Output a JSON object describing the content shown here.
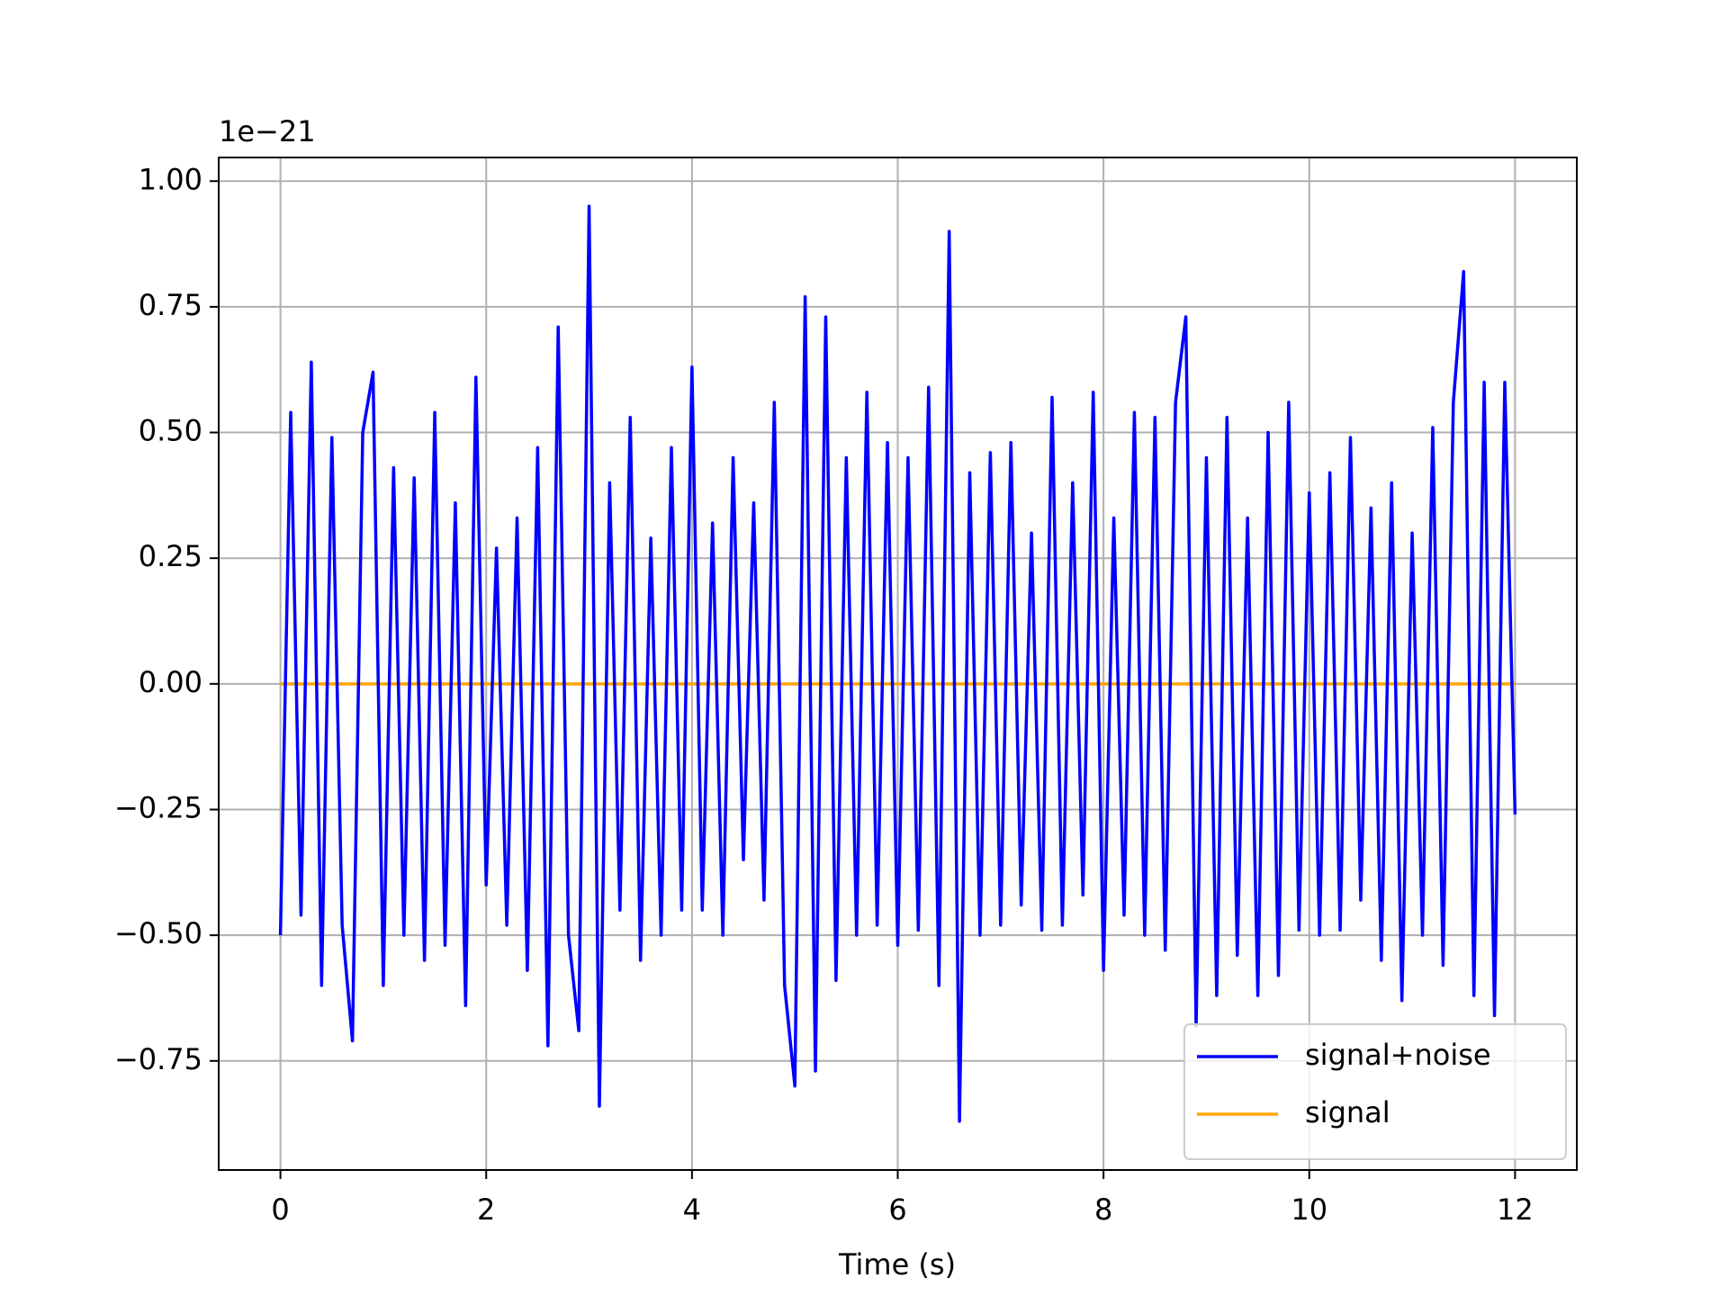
{
  "chart_data": {
    "type": "line",
    "xlabel": "Time (s)",
    "offset_text": "1e−21",
    "x": [
      0.0,
      0.1,
      0.2,
      0.3,
      0.4,
      0.5,
      0.6,
      0.7,
      0.8,
      0.9,
      1.0,
      1.1,
      1.2,
      1.3,
      1.4,
      1.5,
      1.6,
      1.7,
      1.8,
      1.9,
      2.0,
      2.1,
      2.2,
      2.3,
      2.4,
      2.5,
      2.6,
      2.7,
      2.8,
      2.9,
      3.0,
      3.1,
      3.2,
      3.3,
      3.4,
      3.5,
      3.6,
      3.7,
      3.8,
      3.9,
      4.0,
      4.1,
      4.2,
      4.3,
      4.4,
      4.5,
      4.6,
      4.7,
      4.8,
      4.9,
      5.0,
      5.1,
      5.2,
      5.3,
      5.4,
      5.5,
      5.6,
      5.7,
      5.8,
      5.9,
      6.0,
      6.1,
      6.2,
      6.3,
      6.4,
      6.5,
      6.6,
      6.7,
      6.8,
      6.9,
      7.0,
      7.1,
      7.2,
      7.3,
      7.4,
      7.5,
      7.6,
      7.7,
      7.8,
      7.9,
      8.0,
      8.1,
      8.2,
      8.3,
      8.4,
      8.5,
      8.6,
      8.7,
      8.8,
      8.9,
      9.0,
      9.1,
      9.2,
      9.3,
      9.4,
      9.5,
      9.6,
      9.7,
      9.8,
      9.9,
      10.0,
      10.1,
      10.2,
      10.3,
      10.4,
      10.5,
      10.6,
      10.7,
      10.8,
      10.9,
      11.0,
      11.1,
      11.2,
      11.3,
      11.4,
      11.5,
      11.6,
      11.7,
      11.8,
      11.9,
      12.0
    ],
    "series": [
      {
        "name": "signal+noise",
        "color": "#0000ff",
        "values": [
          -0.5,
          0.54,
          -0.46,
          0.64,
          -0.6,
          0.49,
          -0.48,
          -0.71,
          0.5,
          0.62,
          -0.6,
          0.43,
          -0.5,
          0.41,
          -0.55,
          0.54,
          -0.52,
          0.36,
          -0.64,
          0.61,
          -0.4,
          0.27,
          -0.48,
          0.33,
          -0.57,
          0.47,
          -0.72,
          0.71,
          -0.5,
          -0.69,
          0.95,
          -0.84,
          0.4,
          -0.45,
          0.53,
          -0.55,
          0.29,
          -0.5,
          0.47,
          -0.45,
          0.63,
          -0.45,
          0.32,
          -0.5,
          0.45,
          -0.35,
          0.36,
          -0.43,
          0.56,
          -0.6,
          -0.8,
          0.77,
          -0.77,
          0.73,
          -0.59,
          0.45,
          -0.5,
          0.58,
          -0.48,
          0.48,
          -0.52,
          0.45,
          -0.49,
          0.59,
          -0.6,
          0.9,
          -0.87,
          0.42,
          -0.5,
          0.46,
          -0.48,
          0.48,
          -0.44,
          0.3,
          -0.49,
          0.57,
          -0.48,
          0.4,
          -0.42,
          0.58,
          -0.57,
          0.33,
          -0.46,
          0.54,
          -0.5,
          0.53,
          -0.53,
          0.56,
          0.73,
          -0.68,
          0.45,
          -0.62,
          0.53,
          -0.54,
          0.33,
          -0.62,
          0.5,
          -0.58,
          0.56,
          -0.49,
          0.38,
          -0.5,
          0.42,
          -0.49,
          0.49,
          -0.43,
          0.35,
          -0.55,
          0.4,
          -0.63,
          0.3,
          -0.5,
          0.51,
          -0.56,
          0.56,
          0.82,
          -0.62,
          0.6,
          -0.66,
          0.6,
          -0.26
        ]
      },
      {
        "name": "signal",
        "color": "#ffa500",
        "values": [
          0,
          0,
          0,
          0,
          0,
          0,
          0,
          0,
          0,
          0,
          0,
          0,
          0,
          0,
          0,
          0,
          0,
          0,
          0,
          0,
          0,
          0,
          0,
          0,
          0,
          0,
          0,
          0,
          0,
          0,
          0,
          0,
          0,
          0,
          0,
          0,
          0,
          0,
          0,
          0,
          0,
          0,
          0,
          0,
          0,
          0,
          0,
          0,
          0,
          0,
          0,
          0,
          0,
          0,
          0,
          0,
          0,
          0,
          0,
          0,
          0,
          0,
          0,
          0,
          0,
          0,
          0,
          0,
          0,
          0,
          0,
          0,
          0,
          0,
          0,
          0,
          0,
          0,
          0,
          0,
          0,
          0,
          0,
          0,
          0,
          0,
          0,
          0,
          0,
          0,
          0,
          0,
          0,
          0,
          0,
          0,
          0,
          0,
          0,
          0,
          0,
          0,
          0,
          0,
          0,
          0,
          0,
          0,
          0,
          0,
          0,
          0,
          0,
          0,
          0,
          0,
          0,
          0,
          0,
          0,
          0
        ]
      }
    ],
    "xlim": [
      -0.6,
      12.6
    ],
    "ylim": [
      -0.967,
      1.047
    ],
    "xticks": [
      0,
      2,
      4,
      6,
      8,
      10,
      12
    ],
    "yticks": [
      {
        "value": -0.75,
        "label": "−0.75"
      },
      {
        "value": -0.5,
        "label": "−0.50"
      },
      {
        "value": -0.25,
        "label": "−0.25"
      },
      {
        "value": 0,
        "label": "0.00"
      },
      0.25,
      {
        "value": 0.5,
        "label": "0.50"
      },
      0.75,
      {
        "value": 1,
        "label": "1.00"
      }
    ],
    "grid": true,
    "legend": "lower right"
  }
}
